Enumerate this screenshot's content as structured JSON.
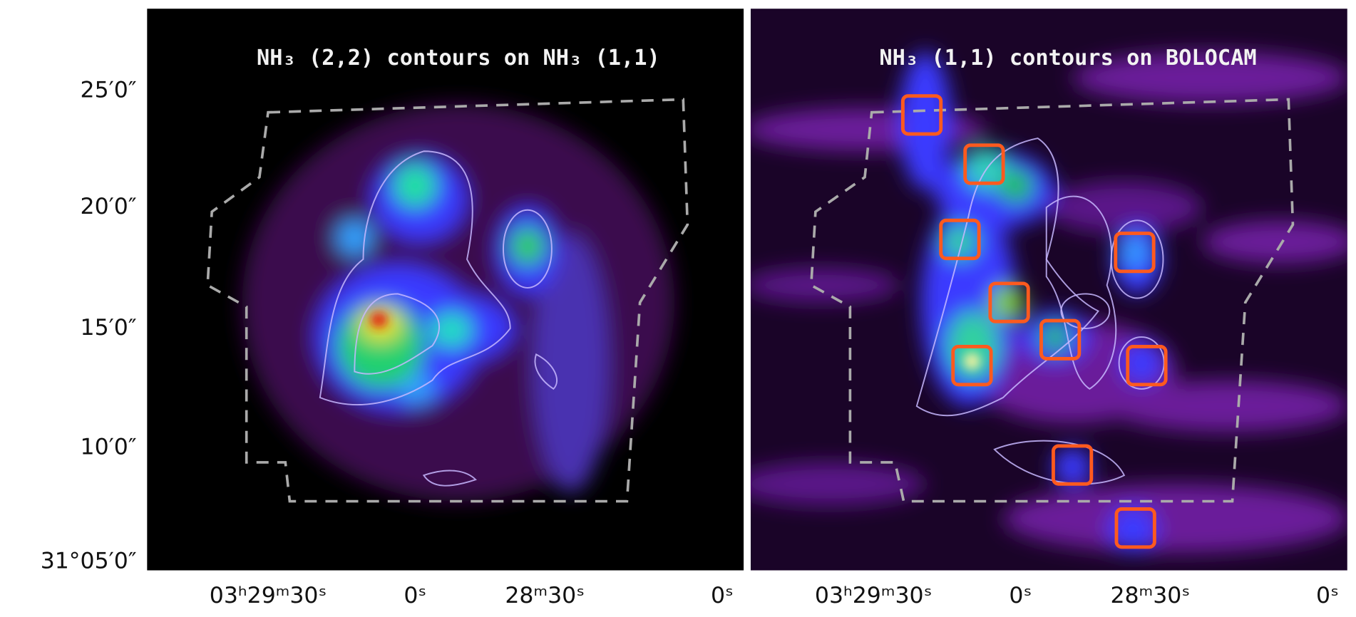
{
  "panels": [
    {
      "title": "NH₃ (2,2) contours on NH₃ (1,1)",
      "x_labels": [
        "03ʰ29ᵐ30ˢ",
        "0ˢ",
        "28ᵐ30ˢ",
        "0ˢ"
      ]
    },
    {
      "title": "NH₃ (1,1) contours on BOLOCAM",
      "x_labels": [
        "03ʰ29ᵐ30ˢ",
        "0ˢ",
        "28ᵐ30ˢ",
        "0ˢ"
      ]
    }
  ],
  "y_labels": [
    "25′0″",
    "20′0″",
    "15′0″",
    "10′0″",
    "31°05′0″"
  ]
}
